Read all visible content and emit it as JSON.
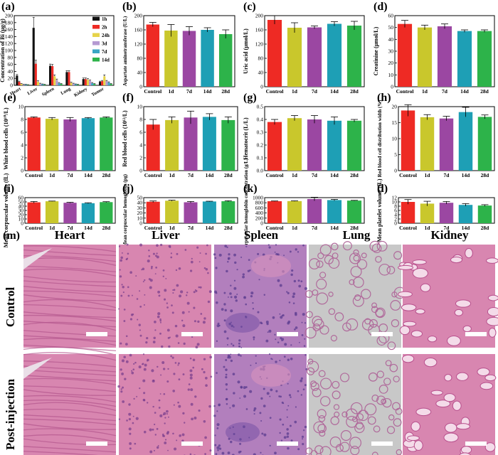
{
  "palette": {
    "bar_colors": [
      "#ee2a24",
      "#c9c72c",
      "#9b47a2",
      "#1e9fb5",
      "#2db34a"
    ],
    "organ_colors": [
      "#111111",
      "#ee2a24",
      "#e6d34a",
      "#b59ad2",
      "#3aa6c4",
      "#2db34a"
    ],
    "tissue_pink": "#d886b0",
    "tissue_purple": "#9a74bb",
    "lung_gray": "#c8c8c8",
    "scale_bar": "#ffffff"
  },
  "chart_data": [
    {
      "id": "a",
      "label": "(a)",
      "type": "bar",
      "ylabel": "Concentration of Bi (μg/g)",
      "ylim": [
        0,
        200
      ],
      "yticks": [
        0,
        20,
        40,
        60,
        80,
        100,
        120,
        140,
        160,
        180,
        200
      ],
      "categories": [
        "Heart",
        "Liver",
        "Spleen",
        "Lung",
        "Kidney",
        "Tumor"
      ],
      "series": [
        {
          "name": "1h",
          "values": [
            28,
            165,
            56,
            38,
            18,
            10
          ],
          "errors": [
            3,
            30,
            5,
            4,
            3,
            2
          ]
        },
        {
          "name": "2h",
          "values": [
            10,
            62,
            55,
            38,
            18,
            12
          ],
          "errors": [
            2,
            10,
            5,
            4,
            3,
            2
          ]
        },
        {
          "name": "24h",
          "values": [
            4,
            10,
            26,
            7,
            16,
            26
          ],
          "errors": [
            1,
            3,
            4,
            2,
            3,
            4
          ]
        },
        {
          "name": "3d",
          "values": [
            2,
            4,
            15,
            5,
            13,
            12
          ],
          "errors": [
            1,
            2,
            3,
            1,
            2,
            2
          ]
        },
        {
          "name": "7d",
          "values": [
            2,
            3,
            6,
            3,
            6,
            8
          ],
          "errors": [
            1,
            1,
            2,
            1,
            2,
            2
          ]
        },
        {
          "name": "14d",
          "values": [
            1,
            2,
            4,
            2,
            4,
            4
          ],
          "errors": [
            1,
            1,
            1,
            1,
            1,
            1
          ]
        }
      ]
    },
    {
      "id": "b",
      "label": "(b)",
      "type": "bar",
      "ylabel": "Aspartate aminotransferase (U/L)",
      "ylim": [
        0,
        200
      ],
      "yticks": [
        0,
        40,
        80,
        120,
        160,
        200
      ],
      "categories": [
        "Control",
        "1d",
        "7d",
        "14d",
        "28d"
      ],
      "values": [
        175,
        158,
        157,
        160,
        148
      ],
      "errors": [
        6,
        17,
        12,
        6,
        12
      ]
    },
    {
      "id": "c",
      "label": "(c)",
      "type": "bar",
      "ylabel": "Uric acid (μmol/L)",
      "ylim": [
        0,
        200
      ],
      "yticks": [
        0,
        40,
        80,
        120,
        160,
        200
      ],
      "categories": [
        "Control",
        "1d",
        "7d",
        "14d",
        "28d"
      ],
      "values": [
        188,
        166,
        167,
        177,
        172
      ],
      "errors": [
        12,
        14,
        4,
        6,
        12
      ]
    },
    {
      "id": "d",
      "label": "(d)",
      "type": "bar",
      "ylabel": "Creatinine (μmol/L)",
      "ylim": [
        0,
        60
      ],
      "yticks": [
        0,
        10,
        20,
        30,
        40,
        50,
        60
      ],
      "categories": [
        "Control",
        "1d",
        "7d",
        "14d",
        "28d"
      ],
      "values": [
        53,
        50,
        51,
        47,
        47
      ],
      "errors": [
        3,
        2,
        2,
        1,
        1
      ]
    },
    {
      "id": "e",
      "label": "(e)",
      "type": "bar",
      "ylabel": "White blood cells (10¹⁰/L)",
      "ylim": [
        0,
        10
      ],
      "yticks": [
        0,
        2,
        4,
        6,
        8,
        10
      ],
      "categories": [
        "Control",
        "1d",
        "7d",
        "14d",
        "28d"
      ],
      "values": [
        8.3,
        8.1,
        8.0,
        8.2,
        8.3
      ],
      "errors": [
        0.1,
        0.2,
        0.3,
        0.1,
        0.1
      ]
    },
    {
      "id": "f",
      "label": "(f)",
      "type": "bar",
      "ylabel": "Red blood cells (10¹²/L)",
      "ylim": [
        0,
        10
      ],
      "yticks": [
        0,
        2,
        4,
        6,
        8,
        10
      ],
      "categories": [
        "Control",
        "1d",
        "7d",
        "14d",
        "28d"
      ],
      "values": [
        7.2,
        7.9,
        8.3,
        8.4,
        7.9
      ],
      "errors": [
        0.8,
        0.5,
        1.0,
        0.5,
        0.5
      ]
    },
    {
      "id": "g",
      "label": "(g)",
      "type": "bar",
      "ylabel": "Hematocrit (L/L)",
      "ylim": [
        0,
        0.5
      ],
      "yticks": [
        0.0,
        0.1,
        0.2,
        0.3,
        0.4,
        0.5
      ],
      "categories": [
        "Control",
        "1d",
        "7d",
        "14d",
        "28d"
      ],
      "values": [
        0.38,
        0.41,
        0.4,
        0.39,
        0.39
      ],
      "errors": [
        0.02,
        0.02,
        0.03,
        0.03,
        0.01
      ]
    },
    {
      "id": "h",
      "label": "(h)",
      "type": "bar",
      "ylabel": "Red blood cell distribution width (%)",
      "ylim": [
        0,
        20
      ],
      "yticks": [
        0,
        5,
        10,
        15,
        20
      ],
      "categories": [
        "Control",
        "1d",
        "7d",
        "14d",
        "28d"
      ],
      "values": [
        18.8,
        16.7,
        16.3,
        18.3,
        16.8
      ],
      "errors": [
        1.8,
        0.8,
        0.7,
        1.5,
        0.6
      ]
    },
    {
      "id": "i",
      "label": "(i)",
      "type": "bar",
      "ylabel": "Mean corpuscular volume (fL)",
      "ylim": [
        0,
        60
      ],
      "yticks": [
        0,
        10,
        20,
        30,
        40,
        50,
        60
      ],
      "categories": [
        "Control",
        "1d",
        "7d",
        "14d",
        "28d"
      ],
      "values": [
        49,
        51.5,
        48,
        47,
        49.5
      ],
      "errors": [
        2,
        0.5,
        1,
        1,
        1
      ]
    },
    {
      "id": "j",
      "label": "(j)",
      "type": "bar",
      "ylabel": "Mean corpuscular hemoglobin (pg)",
      "ylim": [
        0,
        50
      ],
      "yticks": [
        0,
        10,
        20,
        30,
        40,
        50
      ],
      "categories": [
        "Control",
        "1d",
        "7d",
        "14d",
        "28d"
      ],
      "values": [
        42,
        44,
        41,
        42.5,
        43
      ],
      "errors": [
        1.5,
        1,
        1.5,
        0.5,
        1
      ]
    },
    {
      "id": "k",
      "label": "(k)",
      "type": "bar",
      "ylabel": "Mean corpuscular hemoglobin concentration (g/L)",
      "ylim": [
        0,
        1000
      ],
      "yticks": [
        0,
        200,
        400,
        600,
        800,
        1000
      ],
      "categories": [
        "Control",
        "1d",
        "7d",
        "14d",
        "28d"
      ],
      "values": [
        860,
        865,
        945,
        905,
        885
      ],
      "errors": [
        10,
        10,
        70,
        25,
        10
      ]
    },
    {
      "id": "l",
      "label": "(l)",
      "type": "bar",
      "ylabel": "Mean platelet volume (fL)",
      "ylim": [
        0,
        12
      ],
      "yticks": [
        0,
        2,
        4,
        6,
        8,
        10,
        12
      ],
      "categories": [
        "Control",
        "1d",
        "7d",
        "14d",
        "28d"
      ],
      "values": [
        10.0,
        9.2,
        9.6,
        8.6,
        8.3
      ],
      "errors": [
        1.1,
        1.1,
        0.6,
        0.6,
        0.4
      ]
    }
  ],
  "histology": {
    "label": "(m)",
    "organs": [
      "Heart",
      "Liver",
      "Spleen",
      "Lung",
      "Kidney"
    ],
    "rows": [
      "Control",
      "Post-injection"
    ]
  }
}
